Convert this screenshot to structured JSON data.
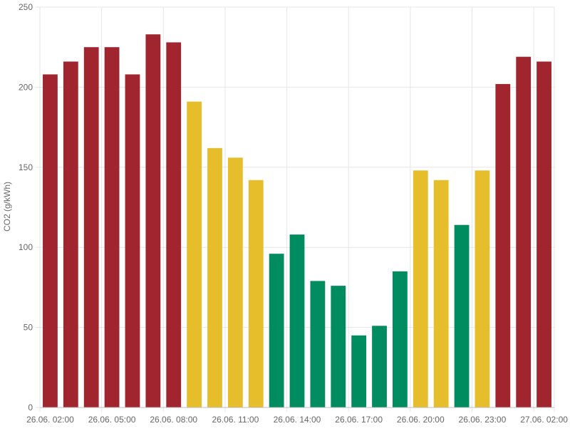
{
  "chart_data": {
    "type": "bar",
    "title": "",
    "xlabel": "",
    "ylabel": "CO2 (g/kWh)",
    "ylim": [
      0,
      250
    ],
    "yticks": [
      0,
      50,
      100,
      150,
      200,
      250
    ],
    "grid": true,
    "legend": "none",
    "x_tick_labels": [
      "26.06. 02:00",
      "26.06. 05:00",
      "26.06. 08:00",
      "26.06. 11:00",
      "26.06. 14:00",
      "26.06. 17:00",
      "26.06. 20:00",
      "26.06. 23:00",
      "27.06. 02:00"
    ],
    "categories": [
      "26.06. 02:00",
      "26.06. 03:00",
      "26.06. 04:00",
      "26.06. 05:00",
      "26.06. 06:00",
      "26.06. 07:00",
      "26.06. 08:00",
      "26.06. 09:00",
      "26.06. 10:00",
      "26.06. 11:00",
      "26.06. 12:00",
      "26.06. 13:00",
      "26.06. 14:00",
      "26.06. 15:00",
      "26.06. 16:00",
      "26.06. 17:00",
      "26.06. 18:00",
      "26.06. 19:00",
      "26.06. 20:00",
      "26.06. 21:00",
      "26.06. 22:00",
      "26.06. 23:00",
      "27.06. 00:00",
      "27.06. 01:00",
      "27.06. 02:00"
    ],
    "values": [
      208,
      216,
      225,
      225,
      208,
      233,
      228,
      191,
      162,
      156,
      142,
      96,
      108,
      79,
      76,
      45,
      51,
      85,
      148,
      142,
      114,
      148,
      202,
      219,
      216
    ],
    "bar_levels": [
      "high",
      "high",
      "high",
      "high",
      "high",
      "high",
      "high",
      "medium",
      "medium",
      "medium",
      "medium",
      "low",
      "low",
      "low",
      "low",
      "low",
      "low",
      "low",
      "medium",
      "medium",
      "low",
      "medium",
      "high",
      "high",
      "high"
    ],
    "colors": {
      "high": "#a0252f",
      "medium": "#e6bd2a",
      "low": "#008c5f"
    }
  }
}
